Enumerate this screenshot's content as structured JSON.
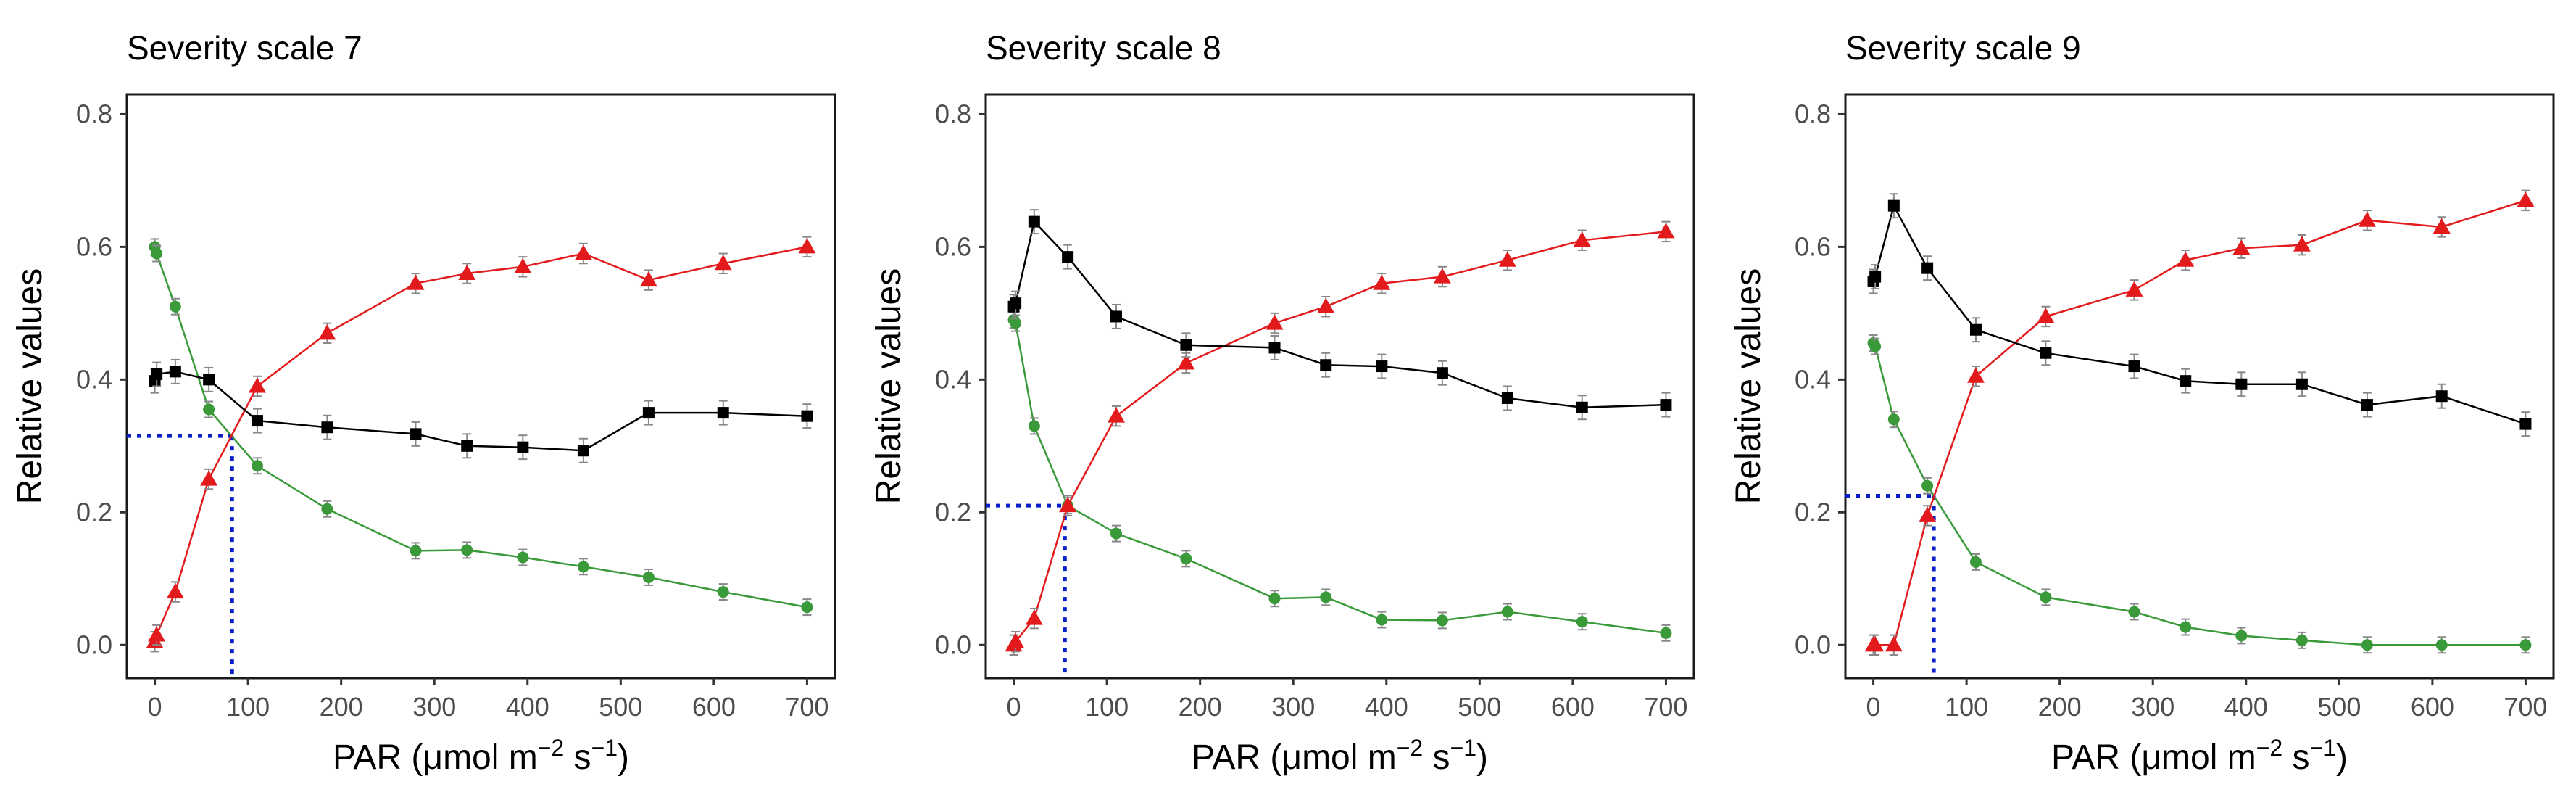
{
  "figure": {
    "colors": {
      "green": "#3a9a3a",
      "red": "#e31a1c",
      "black": "#000000",
      "dotted": "#0a1fc8",
      "errorbar": "#888888"
    },
    "axis": {
      "xlabel": "PAR  (μmol m−2 s−1)",
      "xlabel_parts": {
        "base": "PAR  (μmol m",
        "exp1": "−2",
        "mid": " s",
        "exp2": "−1",
        "end": ")"
      },
      "ylabel": "Relative values"
    }
  },
  "chart_data": [
    {
      "type": "line",
      "title": "Severity scale 7",
      "xlabel": "PAR  (μmol m−2 s−1)",
      "ylabel": "Relative values",
      "xlim": [
        -30,
        730
      ],
      "ylim": [
        -0.05,
        0.83
      ],
      "xticks": [
        0,
        100,
        200,
        300,
        400,
        500,
        600,
        700
      ],
      "yticks": [
        0.0,
        0.2,
        0.4,
        0.6,
        0.8
      ],
      "ytick_labels": [
        "0.0",
        "0.2",
        "0.4",
        "0.6",
        "0.8"
      ],
      "crossing": {
        "x": 83,
        "y": 0.315
      },
      "series": [
        {
          "name": "green",
          "marker": "circle",
          "color": "#3a9a3a",
          "x": [
            0,
            2,
            22,
            58,
            110,
            185,
            280,
            335,
            395,
            460,
            530,
            610,
            700
          ],
          "y": [
            0.6,
            0.59,
            0.51,
            0.355,
            0.27,
            0.205,
            0.142,
            0.143,
            0.132,
            0.118,
            0.102,
            0.08,
            0.057
          ],
          "err": [
            0.012,
            0.012,
            0.012,
            0.012,
            0.012,
            0.012,
            0.012,
            0.012,
            0.012,
            0.012,
            0.012,
            0.012,
            0.012
          ]
        },
        {
          "name": "red",
          "marker": "triangle",
          "color": "#e31a1c",
          "x": [
            0,
            2,
            22,
            58,
            110,
            185,
            280,
            335,
            395,
            460,
            530,
            610,
            700
          ],
          "y": [
            0.005,
            0.015,
            0.08,
            0.25,
            0.39,
            0.47,
            0.545,
            0.56,
            0.57,
            0.59,
            0.55,
            0.575,
            0.6
          ],
          "err": [
            0.015,
            0.015,
            0.015,
            0.015,
            0.015,
            0.015,
            0.015,
            0.015,
            0.015,
            0.015,
            0.015,
            0.015,
            0.015
          ]
        },
        {
          "name": "black",
          "marker": "square",
          "color": "#000000",
          "x": [
            0,
            2,
            22,
            58,
            110,
            185,
            280,
            335,
            395,
            460,
            530,
            610,
            700
          ],
          "y": [
            0.398,
            0.408,
            0.412,
            0.4,
            0.338,
            0.328,
            0.318,
            0.3,
            0.298,
            0.293,
            0.35,
            0.35,
            0.345
          ],
          "err": [
            0.018,
            0.018,
            0.018,
            0.018,
            0.018,
            0.018,
            0.018,
            0.018,
            0.018,
            0.018,
            0.018,
            0.018,
            0.018
          ]
        }
      ]
    },
    {
      "type": "line",
      "title": "Severity scale 8",
      "xlabel": "PAR  (μmol m−2 s−1)",
      "ylabel": "Relative values",
      "xlim": [
        -30,
        730
      ],
      "ylim": [
        -0.05,
        0.83
      ],
      "xticks": [
        0,
        100,
        200,
        300,
        400,
        500,
        600,
        700
      ],
      "yticks": [
        0.0,
        0.2,
        0.4,
        0.6,
        0.8
      ],
      "ytick_labels": [
        "0.0",
        "0.2",
        "0.4",
        "0.6",
        "0.8"
      ],
      "crossing": {
        "x": 55,
        "y": 0.21
      },
      "series": [
        {
          "name": "green",
          "marker": "circle",
          "color": "#3a9a3a",
          "x": [
            0,
            2,
            22,
            58,
            110,
            185,
            280,
            335,
            395,
            460,
            530,
            610,
            700
          ],
          "y": [
            0.49,
            0.485,
            0.33,
            0.21,
            0.168,
            0.13,
            0.07,
            0.072,
            0.038,
            0.037,
            0.05,
            0.035,
            0.018
          ],
          "err": [
            0.012,
            0.012,
            0.012,
            0.012,
            0.012,
            0.012,
            0.012,
            0.012,
            0.012,
            0.012,
            0.012,
            0.012,
            0.012
          ]
        },
        {
          "name": "red",
          "marker": "triangle",
          "color": "#e31a1c",
          "x": [
            0,
            2,
            22,
            58,
            110,
            185,
            280,
            335,
            395,
            460,
            530,
            610,
            700
          ],
          "y": [
            0.0,
            0.005,
            0.04,
            0.21,
            0.345,
            0.425,
            0.485,
            0.51,
            0.545,
            0.555,
            0.58,
            0.61,
            0.623
          ],
          "err": [
            0.015,
            0.015,
            0.015,
            0.015,
            0.015,
            0.015,
            0.015,
            0.015,
            0.015,
            0.015,
            0.015,
            0.015,
            0.015
          ]
        },
        {
          "name": "black",
          "marker": "square",
          "color": "#000000",
          "x": [
            0,
            2,
            22,
            58,
            110,
            185,
            280,
            335,
            395,
            460,
            530,
            610,
            700
          ],
          "y": [
            0.51,
            0.515,
            0.638,
            0.585,
            0.495,
            0.452,
            0.448,
            0.422,
            0.42,
            0.41,
            0.372,
            0.358,
            0.362
          ],
          "err": [
            0.018,
            0.018,
            0.018,
            0.018,
            0.018,
            0.018,
            0.018,
            0.018,
            0.018,
            0.018,
            0.018,
            0.018,
            0.018
          ]
        }
      ]
    },
    {
      "type": "line",
      "title": "Severity scale 9",
      "xlabel": "PAR  (μmol m−2 s−1)",
      "ylabel": "Relative values",
      "xlim": [
        -30,
        730
      ],
      "ylim": [
        -0.05,
        0.83
      ],
      "xticks": [
        0,
        100,
        200,
        300,
        400,
        500,
        600,
        700
      ],
      "yticks": [
        0.0,
        0.2,
        0.4,
        0.6,
        0.8
      ],
      "ytick_labels": [
        "0.0",
        "0.2",
        "0.4",
        "0.6",
        "0.8"
      ],
      "crossing": {
        "x": 65,
        "y": 0.225
      },
      "series": [
        {
          "name": "green",
          "marker": "circle",
          "color": "#3a9a3a",
          "x": [
            0,
            2,
            22,
            58,
            110,
            185,
            280,
            335,
            395,
            460,
            530,
            610,
            700
          ],
          "y": [
            0.455,
            0.45,
            0.34,
            0.24,
            0.125,
            0.072,
            0.05,
            0.027,
            0.014,
            0.007,
            0.0,
            0.0,
            0.0
          ],
          "err": [
            0.012,
            0.012,
            0.012,
            0.012,
            0.012,
            0.012,
            0.012,
            0.012,
            0.012,
            0.012,
            0.012,
            0.012,
            0.012
          ]
        },
        {
          "name": "red",
          "marker": "triangle",
          "color": "#e31a1c",
          "x": [
            0,
            2,
            22,
            58,
            110,
            185,
            280,
            335,
            395,
            460,
            530,
            610,
            700
          ],
          "y": [
            0.0,
            0.0,
            0.0,
            0.195,
            0.405,
            0.495,
            0.535,
            0.58,
            0.598,
            0.603,
            0.64,
            0.63,
            0.67
          ],
          "err": [
            0.015,
            0.015,
            0.015,
            0.015,
            0.015,
            0.015,
            0.015,
            0.015,
            0.015,
            0.015,
            0.015,
            0.015,
            0.015
          ]
        },
        {
          "name": "black",
          "marker": "square",
          "color": "#000000",
          "x": [
            0,
            2,
            22,
            58,
            110,
            185,
            280,
            335,
            395,
            460,
            530,
            610,
            700
          ],
          "y": [
            0.548,
            0.555,
            0.662,
            0.568,
            0.475,
            0.44,
            0.42,
            0.398,
            0.393,
            0.393,
            0.362,
            0.375,
            0.333
          ],
          "err": [
            0.018,
            0.018,
            0.018,
            0.018,
            0.018,
            0.018,
            0.018,
            0.018,
            0.018,
            0.018,
            0.018,
            0.018,
            0.018
          ]
        }
      ]
    }
  ]
}
